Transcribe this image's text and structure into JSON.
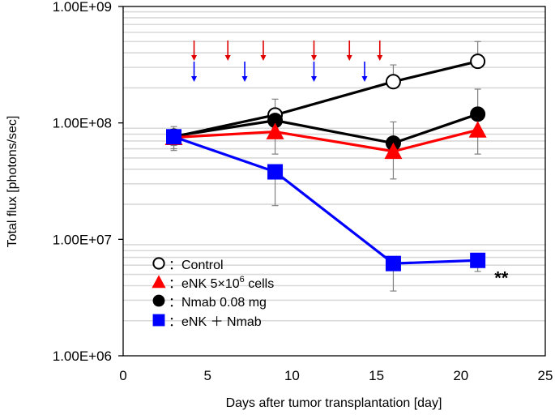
{
  "chart_data": {
    "type": "line",
    "title": "",
    "xlabel": "Days after tumor transplantation [day]",
    "ylabel": "Total flux [photons/sec]",
    "x_scale": "linear",
    "y_scale": "log",
    "xlim": [
      0,
      25
    ],
    "ylim": [
      1000000,
      1000000000
    ],
    "x_ticks": [
      0,
      5,
      10,
      15,
      20,
      25
    ],
    "x_tick_labels": [
      "0",
      "5",
      "10",
      "15",
      "20",
      "25"
    ],
    "y_ticks": [
      1000000,
      10000000,
      100000000,
      1000000000
    ],
    "y_tick_labels": [
      "1.00E+06",
      "1.00E+07",
      "1.00E+08",
      "1.00E+09"
    ],
    "grid": "horizontal minor (log)",
    "legend_position": "bottom-left",
    "x": [
      3,
      9,
      16,
      21
    ],
    "series": [
      {
        "name": "Control",
        "legend_label": "：Control",
        "marker": "open-circle",
        "line_color": "#000000",
        "marker_fill": "#ffffff",
        "values": [
          76000000,
          117000000,
          226000000,
          338000000
        ],
        "error_upper": [
          88000000,
          160000000,
          315000000,
          500000000
        ],
        "error_lower": [
          64000000,
          117000000,
          226000000,
          338000000
        ]
      },
      {
        "name": "eNK 5×10^6 cells",
        "legend_label": "：eNK 5×10",
        "legend_sup": "6",
        "legend_suffix": " cells",
        "marker": "triangle",
        "line_color": "#ff0000",
        "marker_fill": "#ff0000",
        "values": [
          75000000,
          84000000,
          57000000,
          87000000
        ],
        "error_upper": [
          75000000,
          84000000,
          57000000,
          87000000
        ],
        "error_lower": [
          60000000,
          54000000,
          33000000,
          54000000
        ]
      },
      {
        "name": "Nmab 0.08 mg",
        "legend_label": "：Nmab 0.08 mg",
        "marker": "filled-circle",
        "line_color": "#000000",
        "marker_fill": "#000000",
        "values": [
          77000000,
          105000000,
          67000000,
          119000000
        ],
        "error_upper": [
          77000000,
          105000000,
          102000000,
          195000000
        ],
        "error_lower": [
          77000000,
          105000000,
          67000000,
          119000000
        ]
      },
      {
        "name": "eNK + Nmab",
        "legend_label": "：eNK ＋ Nmab",
        "marker": "square",
        "line_color": "#0000ff",
        "marker_fill": "#0000ff",
        "values": [
          76000000,
          38000000,
          6200000,
          6600000
        ],
        "error_upper": [
          93000000,
          38000000,
          6200000,
          6600000
        ],
        "error_lower": [
          58000000,
          19500000,
          3600000,
          5300000
        ]
      }
    ],
    "dosing_arrows": {
      "red_days": [
        4.2,
        6.2,
        8.3,
        11.3,
        13.4,
        15.2
      ],
      "blue_days": [
        4.2,
        7.2,
        11.3,
        14.3
      ],
      "red_color": "#e00000",
      "blue_color": "#0000ff"
    },
    "annotations": [
      {
        "text": "**",
        "x": 22.4,
        "y": 4700000
      }
    ]
  }
}
